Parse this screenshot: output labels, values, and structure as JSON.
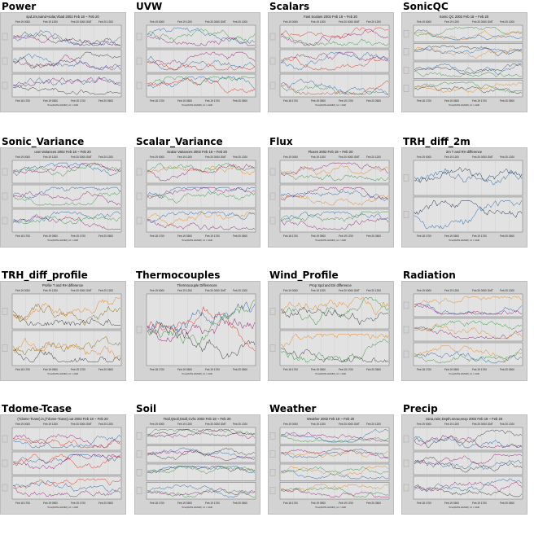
{
  "thumbnails": [
    {
      "title": "Power",
      "plot_title": "spd.2m,twind+solar,Vbatt 2002 Feb 18 ~ Feb 20",
      "kind": "stack3",
      "top_ticks": [
        "Feb 19 0000",
        "Feb 19 1200",
        "Feb 20 0000 GMT",
        "Feb 20 1200"
      ],
      "bottom_ticks": [
        "Feb 18 1700",
        "Feb 19 0500",
        "Feb 19 1700",
        "Feb 20 0500"
      ],
      "xlabel": "Time(DATE HHMM), tic = 2HR",
      "colors": [
        "#333333",
        "#8a1a6e",
        "#1f5fa0"
      ]
    },
    {
      "title": "UVW",
      "plot_title": "",
      "kind": "stack3",
      "top_ticks": [
        "Feb 19 0000",
        "Feb 19 1200",
        "Feb 20 0000 GMT",
        "Feb 20 1200"
      ],
      "bottom_ticks": [
        "Feb 18 1700",
        "Feb 19 0500",
        "Feb 19 1700",
        "Feb 20 0500"
      ],
      "xlabel": "Time(DATE HHMM), tic = 2HR",
      "colors": [
        "#2f8f3a",
        "#8a1a6e",
        "#1f5fa0",
        "#d2301e"
      ]
    },
    {
      "title": "Scalars",
      "plot_title": "Fast Scalars 2002 Feb 18 ~ Feb 20",
      "kind": "stack3",
      "top_ticks": [
        "Feb 19 0000",
        "Feb 19 1200",
        "Feb 20 0000 GMT",
        "Feb 20 1200"
      ],
      "bottom_ticks": [
        "Feb 18 1700",
        "Feb 19 0500",
        "Feb 19 1700",
        "Feb 20 0500"
      ],
      "xlabel": "Time(DATE HHMM), tic = 2HR",
      "colors": [
        "#2f8f3a",
        "#8a1a6e",
        "#d2301e",
        "#1f5fa0"
      ]
    },
    {
      "title": "SonicQC",
      "plot_title": "Sonic QC 2002 Feb 18 ~ Feb 20",
      "kind": "stack4",
      "top_ticks": [
        "Feb 19 0000",
        "Feb 19 1200",
        "Feb 20 0000 GMT",
        "Feb 20 1200"
      ],
      "bottom_ticks": [
        "Feb 18 1700",
        "Feb 19 0500",
        "Feb 19 1700",
        "Feb 20 0500"
      ],
      "xlabel": "Time(DATE HHMM), tic = 2HR",
      "colors": [
        "#2f8f3a",
        "#e0851c",
        "#1f5fa0",
        "#333333"
      ]
    },
    {
      "title": "Sonic_Variance",
      "plot_title": "uvw Variances 2002 Feb 18 ~ Feb 20",
      "kind": "stack3",
      "top_ticks": [
        "Feb 19 0000",
        "Feb 19 1200",
        "Feb 20 0000 GMT",
        "Feb 20 1200"
      ],
      "bottom_ticks": [
        "Feb 18 1700",
        "Feb 19 0500",
        "Feb 19 1700",
        "Feb 20 0500"
      ],
      "xlabel": "Time(DATE HHMM), tic = 2HR",
      "colors": [
        "#1f5fa0",
        "#2f8f3a",
        "#8a1a6e"
      ]
    },
    {
      "title": "Scalar_Variance",
      "plot_title": "Scalar Variances 2002 Feb 18 ~ Feb 20",
      "kind": "stack3",
      "top_ticks": [
        "Feb 19 0000",
        "Feb 19 1200",
        "Feb 20 0000 GMT",
        "Feb 20 1200"
      ],
      "bottom_ticks": [
        "Feb 18 1700",
        "Feb 19 0500",
        "Feb 19 1700",
        "Feb 20 0500"
      ],
      "xlabel": "Time(DATE HHMM), tic = 2HR",
      "colors": [
        "#e0851c",
        "#2f8f3a",
        "#8a1a6e",
        "#1f5fa0"
      ]
    },
    {
      "title": "Flux",
      "plot_title": "Fluxes 2002 Feb 18 ~ Feb 20",
      "kind": "stack3",
      "top_ticks": [
        "Feb 19 0000",
        "Feb 19 1200",
        "Feb 20 0000 GMT",
        "Feb 20 1200"
      ],
      "bottom_ticks": [
        "Feb 18 1700",
        "Feb 19 0500",
        "Feb 19 1700",
        "Feb 20 0500"
      ],
      "xlabel": "Time(DATE HHMM), tic = 2HR",
      "colors": [
        "#2f8f3a",
        "#e0851c",
        "#8a1a6e",
        "#1f5fa0"
      ]
    },
    {
      "title": "TRH_diff_2m",
      "plot_title": "2m T and RH difference",
      "kind": "stack2",
      "top_ticks": [
        "Feb 19 0000",
        "Feb 19 1200",
        "Feb 20 0000 GMT",
        "Feb 20 1200"
      ],
      "bottom_ticks": [
        "Feb 18 1700",
        "Feb 19 0500",
        "Feb 19 1700",
        "Feb 20 0500"
      ],
      "xlabel": "Time(DATE HHMM), tic = 2HR",
      "colors": [
        "#1a2a4a",
        "#1f5fa0"
      ]
    },
    {
      "title": "TRH_diff_profile",
      "plot_title": "Profile T and RH difference",
      "kind": "stack2",
      "top_ticks": [
        "Feb 19 0000",
        "Feb 19 1200",
        "Feb 20 0000 GMT",
        "Feb 20 1200"
      ],
      "bottom_ticks": [
        "Feb 18 1700",
        "Feb 19 0500",
        "Feb 19 1700",
        "Feb 20 0500"
      ],
      "xlabel": "Time(DATE HHMM), tic = 2HR",
      "colors": [
        "#e0851c",
        "#333333",
        "#8a6a1a"
      ]
    },
    {
      "title": "Thermocouples",
      "plot_title": "Thermocouple Differences",
      "kind": "single",
      "top_ticks": [
        "Feb 19 0000",
        "Feb 19 1200",
        "Feb 20 0000 GMT",
        "Feb 20 1200"
      ],
      "bottom_ticks": [
        "Feb 18 1700",
        "Feb 19 0500",
        "Feb 19 1700",
        "Feb 20 0500"
      ],
      "xlabel": "Time(DATE HHMM), tic = 2HR",
      "colors": [
        "#8a1a6e",
        "#333333",
        "#d2301e",
        "#2f8f3a",
        "#1f5fa0"
      ]
    },
    {
      "title": "Wind_Profile",
      "plot_title": "Prop Spd and Dir difference",
      "kind": "stack2",
      "top_ticks": [
        "Feb 19 0000",
        "Feb 19 1200",
        "Feb 20 0000 GMT",
        "Feb 20 1200"
      ],
      "bottom_ticks": [
        "Feb 18 1700",
        "Feb 19 0500",
        "Feb 19 1700",
        "Feb 20 0500"
      ],
      "xlabel": "Time(DATE HHMM), tic = 2HR",
      "colors": [
        "#2f8f3a",
        "#e0851c",
        "#333333"
      ]
    },
    {
      "title": "Radiation",
      "plot_title": "",
      "kind": "stack3",
      "top_ticks": [
        "Feb 19 0000",
        "Feb 19 1200",
        "Feb 20 0000 GMT",
        "Feb 20 1200"
      ],
      "bottom_ticks": [
        "Feb 18 1700",
        "Feb 19 0500",
        "Feb 19 1700",
        "Feb 20 0500"
      ],
      "xlabel": "Time(DATE HHMM), tic = 2HR",
      "colors": [
        "#1f5fa0",
        "#8a1a6e",
        "#e0851c",
        "#2f8f3a"
      ]
    },
    {
      "title": "Tdome-Tcase",
      "plot_title": "(Tdome-Tcase).in,(Tdome-Tcase).out 2002 Feb 18 ~ Feb 20",
      "kind": "stack3",
      "top_ticks": [
        "Feb 19 0000",
        "Feb 19 1200",
        "Feb 20 0000 GMT",
        "Feb 20 1200"
      ],
      "bottom_ticks": [
        "Feb 18 1700",
        "Feb 19 0500",
        "Feb 19 1700",
        "Feb 20 0500"
      ],
      "xlabel": "Time(DATE HHMM), tic = 2HR",
      "colors": [
        "#8a1a6e",
        "#1f5fa0",
        "#d2301e"
      ]
    },
    {
      "title": "Soil",
      "plot_title": "Tsoil,Qsoil,Gsoil,Cvhc 2002 Feb 18 ~ Feb 20",
      "kind": "stack4",
      "top_ticks": [
        "Feb 19 0000",
        "Feb 19 1200",
        "Feb 20 0000 GMT",
        "Feb 20 1200"
      ],
      "bottom_ticks": [
        "Feb 18 1700",
        "Feb 19 0500",
        "Feb 19 1700",
        "Feb 20 0500"
      ],
      "xlabel": "Time(DATE HHMM), tic = 2HR",
      "colors": [
        "#2f8f3a",
        "#8a1a6e",
        "#333333",
        "#1f5fa0"
      ]
    },
    {
      "title": "Weather",
      "plot_title": "Weather 2002 Feb 18 ~ Feb 20",
      "kind": "stack4",
      "top_ticks": [
        "Feb 19 0000",
        "Feb 19 1200",
        "Feb 20 0000 GMT",
        "Feb 20 1200"
      ],
      "bottom_ticks": [
        "Feb 18 1700",
        "Feb 19 0500",
        "Feb 19 1700",
        "Feb 20 0500"
      ],
      "xlabel": "Time(DATE HHMM), tic = 2HR",
      "colors": [
        "#2f8f3a",
        "#8a1a6e",
        "#1f5fa0",
        "#e0851c"
      ]
    },
    {
      "title": "Precip",
      "plot_title": "raina,rainr,Depth.snow,eexp 2002 Feb 18 ~ Feb 20",
      "kind": "stack3",
      "top_ticks": [
        "Feb 19 0000",
        "Feb 19 1200",
        "Feb 20 0000 GMT",
        "Feb 20 1200"
      ],
      "bottom_ticks": [
        "Feb 18 1700",
        "Feb 19 0500",
        "Feb 19 1700",
        "Feb 20 0500"
      ],
      "xlabel": "Time(DATE HHMM), tic = 2HR",
      "colors": [
        "#8a1a6e",
        "#1f5fa0",
        "#333333"
      ]
    }
  ]
}
